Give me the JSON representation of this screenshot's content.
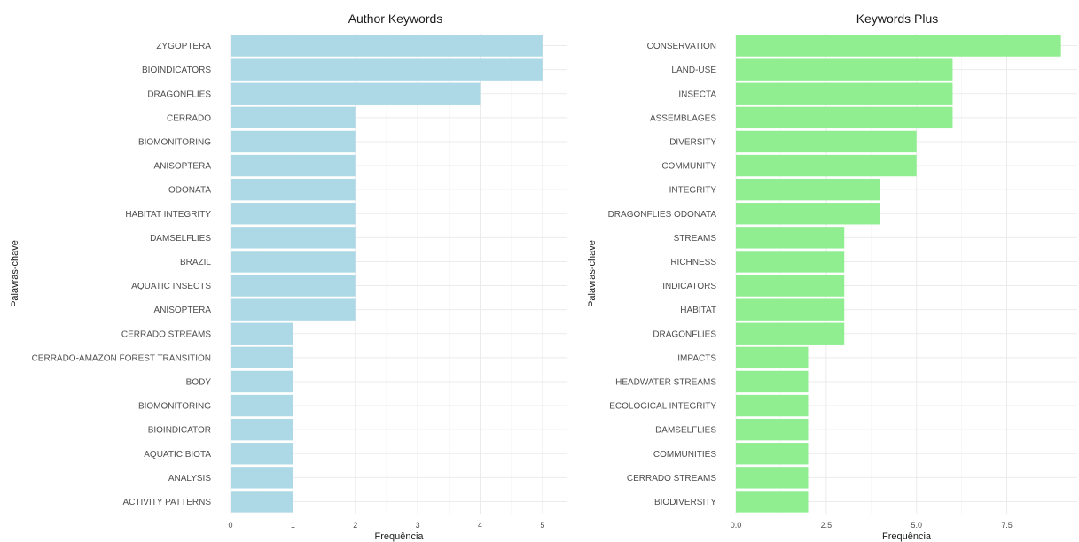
{
  "chart_data": [
    {
      "type": "bar",
      "orientation": "horizontal",
      "title": "Author Keywords",
      "xlabel": "Frequência",
      "ylabel": "Palavras-chave",
      "xlim": [
        0,
        5.4
      ],
      "xticks": [
        0,
        1,
        2,
        3,
        4,
        5
      ],
      "xtick_labels": [
        "0",
        "1",
        "2",
        "3",
        "4",
        "5"
      ],
      "grid": true,
      "bar_color": "#add8e6",
      "categories": [
        "ZYGOPTERA",
        "BIOINDICATORS",
        "DRAGONFLIES",
        "CERRADO",
        "BIOMONITORING",
        "ANISOPTERA",
        "ODONATA",
        "HABITAT INTEGRITY",
        "DAMSELFLIES",
        "BRAZIL",
        "AQUATIC INSECTS",
        "ANISOPTERA",
        "CERRADO STREAMS",
        "CERRADO-AMAZON FOREST TRANSITION",
        "BODY",
        "BIOMONITORING",
        "BIOINDICATOR",
        "AQUATIC BIOTA",
        "ANALYSIS",
        "ACTIVITY PATTERNS"
      ],
      "values": [
        5,
        5,
        4,
        2,
        2,
        2,
        2,
        2,
        2,
        2,
        2,
        2,
        1,
        1,
        1,
        1,
        1,
        1,
        1,
        1
      ]
    },
    {
      "type": "bar",
      "orientation": "horizontal",
      "title": "Keywords Plus",
      "xlabel": "Frequência",
      "ylabel": "Palavras-chave",
      "xlim": [
        0,
        9.45
      ],
      "xticks": [
        0,
        2.5,
        5,
        7.5
      ],
      "xtick_labels": [
        "0.0",
        "2.5",
        "5.0",
        "7.5"
      ],
      "grid": true,
      "bar_color": "#90ee90",
      "categories": [
        "CONSERVATION",
        "LAND-USE",
        "INSECTA",
        "ASSEMBLAGES",
        "DIVERSITY",
        "COMMUNITY",
        "INTEGRITY",
        "DRAGONFLIES ODONATA",
        "STREAMS",
        "RICHNESS",
        "INDICATORS",
        "HABITAT",
        "DRAGONFLIES",
        "IMPACTS",
        "HEADWATER STREAMS",
        "ECOLOGICAL INTEGRITY",
        "DAMSELFLIES",
        "COMMUNITIES",
        "CERRADO STREAMS",
        "BIODIVERSITY"
      ],
      "values": [
        9,
        6,
        6,
        6,
        5,
        5,
        4,
        4,
        3,
        3,
        3,
        3,
        3,
        2,
        2,
        2,
        2,
        2,
        2,
        2
      ]
    }
  ]
}
